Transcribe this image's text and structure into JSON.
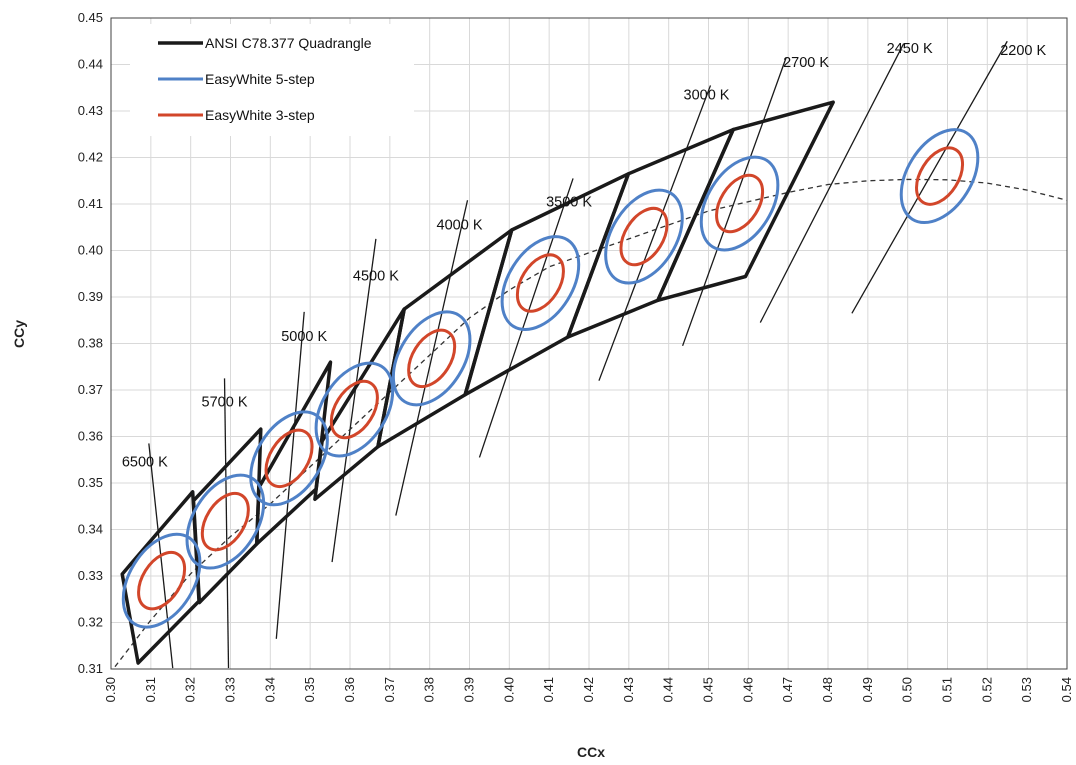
{
  "chart_data": {
    "type": "scatter",
    "xlabel": "CCx",
    "ylabel": "CCy",
    "xlim": [
      0.3,
      0.54
    ],
    "ylim": [
      0.31,
      0.45
    ],
    "x_ticks": [
      "0.30",
      "0.31",
      "0.32",
      "0.33",
      "0.34",
      "0.35",
      "0.36",
      "0.37",
      "0.38",
      "0.39",
      "0.40",
      "0.41",
      "0.42",
      "0.43",
      "0.44",
      "0.45",
      "0.46",
      "0.47",
      "0.48",
      "0.49",
      "0.50",
      "0.51",
      "0.52",
      "0.53",
      "0.54"
    ],
    "y_ticks": [
      "0.31",
      "0.32",
      "0.33",
      "0.34",
      "0.35",
      "0.36",
      "0.37",
      "0.38",
      "0.39",
      "0.40",
      "0.41",
      "0.42",
      "0.43",
      "0.44",
      "0.45"
    ],
    "grid": true,
    "legend_position": "top-left",
    "legend": [
      {
        "label": "ANSI C78.377 Quadrangle",
        "color": "#1a1a1a"
      },
      {
        "label": "EasyWhite 5-step",
        "color": "#4f81c7"
      },
      {
        "label": "EasyWhite 3-step",
        "color": "#d2462a"
      }
    ],
    "colors": {
      "quadrangle": "#1a1a1a",
      "five_step": "#4f81c7",
      "three_step": "#d2462a",
      "grid": "#d9d9d9",
      "locus": "#333333"
    },
    "planckian_locus": [
      [
        0.301,
        0.3105
      ],
      [
        0.31,
        0.3205
      ],
      [
        0.32,
        0.3305
      ],
      [
        0.33,
        0.3385
      ],
      [
        0.34,
        0.3455
      ],
      [
        0.35,
        0.3535
      ],
      [
        0.36,
        0.3615
      ],
      [
        0.37,
        0.3695
      ],
      [
        0.38,
        0.3775
      ],
      [
        0.39,
        0.3855
      ],
      [
        0.4,
        0.3915
      ],
      [
        0.41,
        0.3965
      ],
      [
        0.42,
        0.3995
      ],
      [
        0.43,
        0.4025
      ],
      [
        0.44,
        0.4055
      ],
      [
        0.45,
        0.4085
      ],
      [
        0.46,
        0.4105
      ],
      [
        0.47,
        0.4125
      ],
      [
        0.48,
        0.4142
      ],
      [
        0.49,
        0.415
      ],
      [
        0.5,
        0.4153
      ],
      [
        0.51,
        0.4152
      ],
      [
        0.52,
        0.4145
      ],
      [
        0.53,
        0.413
      ],
      [
        0.54,
        0.4108
      ]
    ],
    "cct_labels": [
      {
        "label": "6500 K",
        "x": 0.3085,
        "y": 0.3535
      },
      {
        "label": "5700 K",
        "x": 0.3285,
        "y": 0.3665
      },
      {
        "label": "5000 K",
        "x": 0.3485,
        "y": 0.3805
      },
      {
        "label": "4500 K",
        "x": 0.3665,
        "y": 0.3935
      },
      {
        "label": "4000 K",
        "x": 0.3875,
        "y": 0.4045
      },
      {
        "label": "3500 K",
        "x": 0.415,
        "y": 0.4095
      },
      {
        "label": "3000 K",
        "x": 0.4495,
        "y": 0.4325
      },
      {
        "label": "2700 K",
        "x": 0.4745,
        "y": 0.4395
      },
      {
        "label": "2450 K",
        "x": 0.5005,
        "y": 0.4425
      },
      {
        "label": "2200 K",
        "x": 0.529,
        "y": 0.442
      }
    ],
    "isotherms": [
      [
        [
          0.3095,
          0.3585
        ],
        [
          0.3155,
          0.3102
        ]
      ],
      [
        [
          0.3285,
          0.3725
        ],
        [
          0.3295,
          0.3102
        ]
      ],
      [
        [
          0.3485,
          0.3868
        ],
        [
          0.3415,
          0.3165
        ]
      ],
      [
        [
          0.3665,
          0.4025
        ],
        [
          0.3555,
          0.333
        ]
      ],
      [
        [
          0.3895,
          0.4108
        ],
        [
          0.3715,
          0.343
        ]
      ],
      [
        [
          0.416,
          0.4155
        ],
        [
          0.3925,
          0.3555
        ]
      ],
      [
        [
          0.4505,
          0.4355
        ],
        [
          0.4225,
          0.372
        ]
      ],
      [
        [
          0.4695,
          0.4415
        ],
        [
          0.4435,
          0.3795
        ]
      ],
      [
        [
          0.499,
          0.4445
        ],
        [
          0.463,
          0.3845
        ]
      ],
      [
        [
          0.525,
          0.445
        ],
        [
          0.486,
          0.3865
        ]
      ]
    ],
    "quadrangles": [
      [
        [
          0.3028,
          0.3304
        ],
        [
          0.3205,
          0.3481
        ],
        [
          0.3221,
          0.3246
        ],
        [
          0.3068,
          0.3113
        ]
      ],
      [
        [
          0.3207,
          0.3462
        ],
        [
          0.3376,
          0.3616
        ],
        [
          0.3366,
          0.3369
        ],
        [
          0.3222,
          0.3243
        ]
      ],
      [
        [
          0.3371,
          0.349
        ],
        [
          0.3551,
          0.376
        ],
        [
          0.3515,
          0.3487
        ],
        [
          0.3366,
          0.3369
        ]
      ],
      [
        [
          0.353,
          0.359
        ],
        [
          0.3736,
          0.3874
        ],
        [
          0.367,
          0.3578
        ],
        [
          0.3512,
          0.3465
        ]
      ],
      [
        [
          0.367,
          0.3578
        ],
        [
          0.3889,
          0.369
        ],
        [
          0.3898,
          0.3716
        ],
        [
          0.4006,
          0.4044
        ],
        [
          0.3736,
          0.3874
        ]
      ],
      [
        [
          0.3889,
          0.369
        ],
        [
          0.4006,
          0.4044
        ],
        [
          0.4299,
          0.4165
        ],
        [
          0.4147,
          0.3814
        ]
      ],
      [
        [
          0.4147,
          0.3814
        ],
        [
          0.4299,
          0.4165
        ],
        [
          0.4562,
          0.426
        ],
        [
          0.4373,
          0.3893
        ]
      ],
      [
        [
          0.4373,
          0.3893
        ],
        [
          0.4562,
          0.426
        ],
        [
          0.4813,
          0.4319
        ],
        [
          0.4593,
          0.3944
        ]
      ]
    ],
    "five_step_ellipses": [
      {
        "cx": 0.3127,
        "cy": 0.329
      },
      {
        "cx": 0.3287,
        "cy": 0.3417
      },
      {
        "cx": 0.3447,
        "cy": 0.3553
      },
      {
        "cx": 0.3611,
        "cy": 0.3658
      },
      {
        "cx": 0.3805,
        "cy": 0.3768
      },
      {
        "cx": 0.4078,
        "cy": 0.393
      },
      {
        "cx": 0.4338,
        "cy": 0.403
      },
      {
        "cx": 0.4578,
        "cy": 0.4101
      },
      {
        "cx": 0.508,
        "cy": 0.416
      }
    ],
    "three_step_ellipses": [
      {
        "cx": 0.3127,
        "cy": 0.329
      },
      {
        "cx": 0.3287,
        "cy": 0.3417
      },
      {
        "cx": 0.3447,
        "cy": 0.3553
      },
      {
        "cx": 0.3611,
        "cy": 0.3658
      },
      {
        "cx": 0.3805,
        "cy": 0.3768
      },
      {
        "cx": 0.4078,
        "cy": 0.393
      },
      {
        "cx": 0.4338,
        "cy": 0.403
      },
      {
        "cx": 0.4578,
        "cy": 0.4101
      },
      {
        "cx": 0.508,
        "cy": 0.416
      }
    ]
  }
}
